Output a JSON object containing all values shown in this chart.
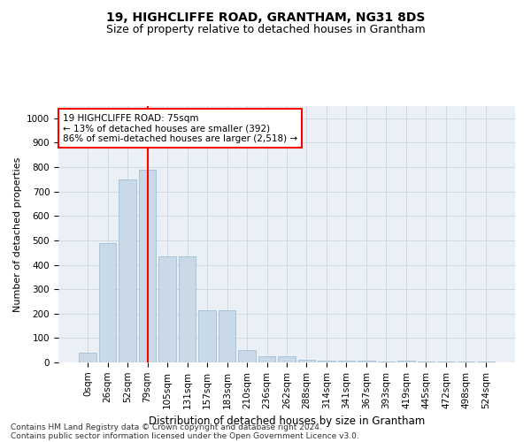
{
  "title1": "19, HIGHCLIFFE ROAD, GRANTHAM, NG31 8DS",
  "title2": "Size of property relative to detached houses in Grantham",
  "xlabel": "Distribution of detached houses by size in Grantham",
  "ylabel": "Number of detached properties",
  "footer1": "Contains HM Land Registry data © Crown copyright and database right 2024.",
  "footer2": "Contains public sector information licensed under the Open Government Licence v3.0.",
  "bar_labels": [
    "0sqm",
    "26sqm",
    "52sqm",
    "79sqm",
    "105sqm",
    "131sqm",
    "157sqm",
    "183sqm",
    "210sqm",
    "236sqm",
    "262sqm",
    "288sqm",
    "314sqm",
    "341sqm",
    "367sqm",
    "393sqm",
    "419sqm",
    "445sqm",
    "472sqm",
    "498sqm",
    "524sqm"
  ],
  "bar_values": [
    40,
    490,
    750,
    790,
    435,
    435,
    215,
    215,
    50,
    25,
    25,
    12,
    9,
    8,
    8,
    5,
    9,
    2,
    2,
    2,
    2
  ],
  "bar_color": "#c9d9e8",
  "bar_edgecolor": "#a8c4d8",
  "grid_color": "#d0d8e0",
  "bg_color": "#eaf0f6",
  "red_line_index": 3,
  "annotation_line1": "19 HIGHCLIFFE ROAD: 75sqm",
  "annotation_line2": "← 13% of detached houses are smaller (392)",
  "annotation_line3": "86% of semi-detached houses are larger (2,518) →",
  "annotation_box_color": "white",
  "annotation_border_color": "red",
  "ylim": [
    0,
    1050
  ],
  "yticks": [
    0,
    100,
    200,
    300,
    400,
    500,
    600,
    700,
    800,
    900,
    1000
  ],
  "title1_fontsize": 10,
  "title2_fontsize": 9,
  "xlabel_fontsize": 8.5,
  "ylabel_fontsize": 8,
  "tick_fontsize": 7.5,
  "footer_fontsize": 6.5
}
